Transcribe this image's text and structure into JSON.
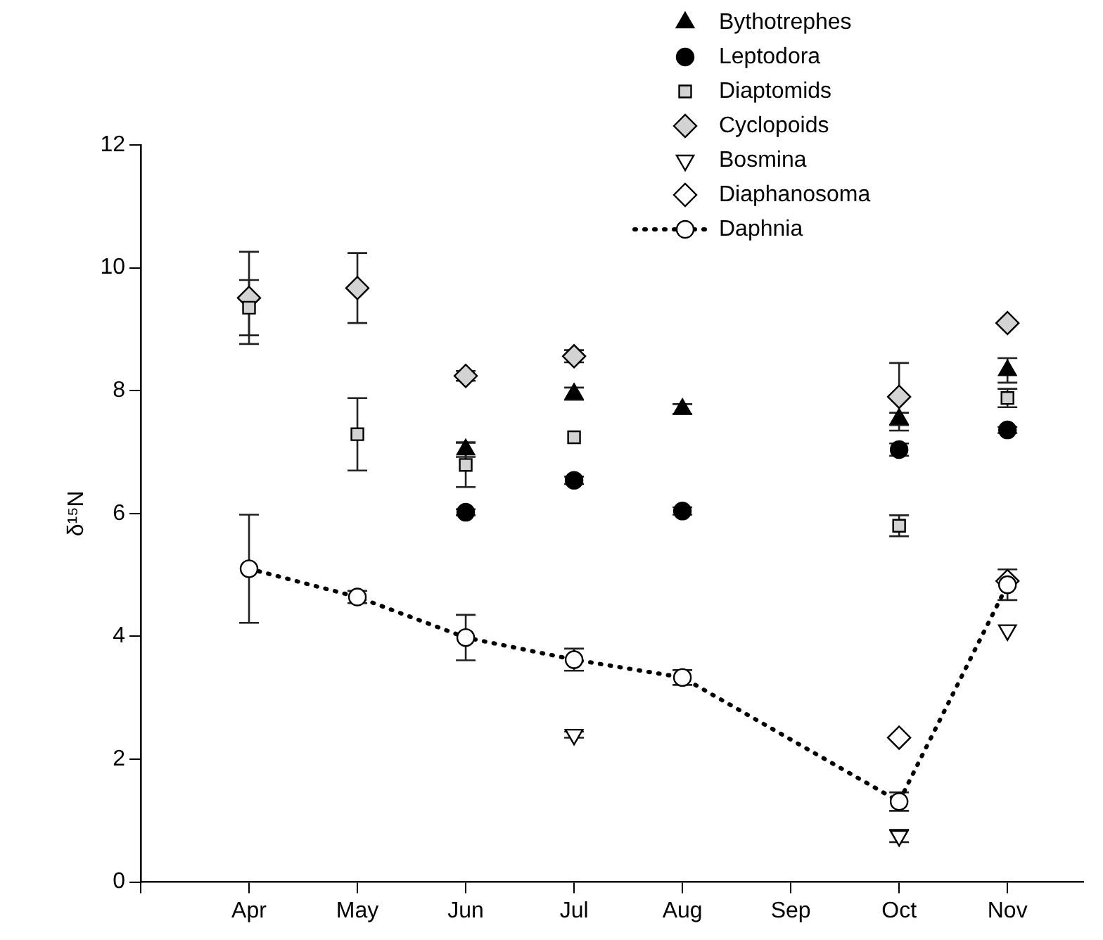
{
  "chart_data": {
    "type": "scatter",
    "ylabel": "δ¹⁵N",
    "categories": [
      "Apr",
      "May",
      "Jun",
      "Jul",
      "Aug",
      "Sep",
      "Oct",
      "Nov"
    ],
    "ylim": [
      0,
      12
    ],
    "yticks": [
      0,
      2,
      4,
      6,
      8,
      10,
      12
    ],
    "grid": false,
    "legend": "top right",
    "series": [
      {
        "name": "Bythotrephes",
        "type": "scatter",
        "marker": "triangle",
        "color": "#000000",
        "values": [
          null,
          null,
          7.04,
          7.95,
          7.7,
          null,
          7.54,
          8.33
        ],
        "errors": [
          null,
          null,
          0.12,
          0.1,
          0.08,
          null,
          0.1,
          0.2
        ]
      },
      {
        "name": "Leptodora",
        "type": "scatter",
        "marker": "circle",
        "color": "#000000",
        "values": [
          null,
          null,
          6.02,
          6.54,
          6.04,
          null,
          7.04,
          7.36
        ],
        "errors": [
          null,
          null,
          0.05,
          0.06,
          0.06,
          null,
          0.1,
          0.05
        ]
      },
      {
        "name": "Diaptomids",
        "type": "scatter",
        "marker": "square",
        "color": "#d3d3d3",
        "values": [
          9.35,
          7.29,
          6.79,
          7.24,
          null,
          null,
          5.8,
          7.88
        ],
        "errors": [
          0.45,
          0.59,
          0.36,
          null,
          null,
          null,
          0.17,
          0.15
        ]
      },
      {
        "name": "Cyclopoids",
        "type": "scatter",
        "marker": "diamond",
        "color": "#d3d3d3",
        "values": [
          9.51,
          9.67,
          8.24,
          8.56,
          null,
          null,
          7.9,
          9.1
        ],
        "errors": [
          0.75,
          0.57,
          0.08,
          0.1,
          null,
          null,
          0.55,
          null
        ]
      },
      {
        "name": "Bosmina",
        "type": "scatter",
        "marker": "triangle-down",
        "color": "#ffffff",
        "values": [
          null,
          null,
          null,
          2.4,
          null,
          null,
          0.75,
          4.1
        ],
        "errors": [
          null,
          null,
          null,
          0.05,
          null,
          null,
          0.1,
          null
        ]
      },
      {
        "name": "Diaphanosoma",
        "type": "scatter",
        "marker": "diamond",
        "color": "#ffffff",
        "values": [
          null,
          null,
          null,
          null,
          null,
          null,
          2.35,
          4.9
        ],
        "errors": [
          null,
          null,
          null,
          null,
          null,
          null,
          null,
          null
        ]
      },
      {
        "name": "Daphnia",
        "type": "line",
        "line_style": "dotted",
        "marker": "circle",
        "color": "#ffffff",
        "values": [
          5.1,
          4.64,
          3.98,
          3.62,
          3.33,
          null,
          1.31,
          4.84
        ],
        "errors": [
          0.88,
          0.1,
          0.37,
          0.18,
          0.12,
          null,
          0.15,
          0.25
        ]
      }
    ]
  }
}
